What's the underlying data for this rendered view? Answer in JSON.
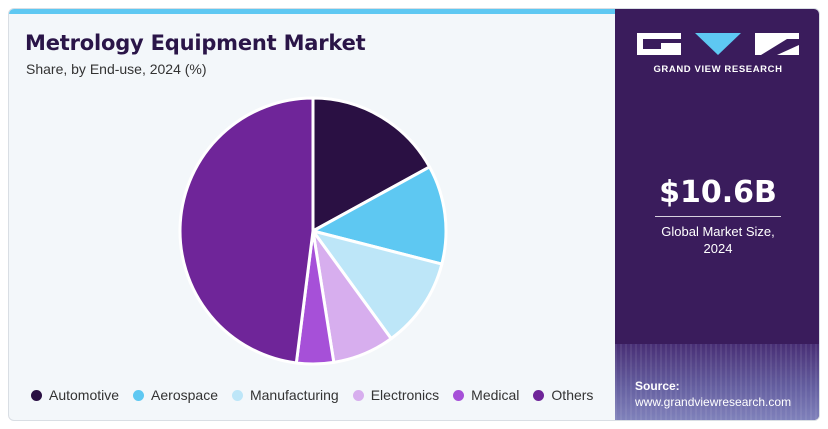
{
  "header": {
    "title": "Metrology Equipment Market",
    "subtitle": "Share, by End-use, 2024 (%)"
  },
  "sidebar": {
    "brand": "GRAND VIEW RESEARCH",
    "kpi_value": "$10.6B",
    "kpi_label_line1": "Global Market Size,",
    "kpi_label_line2": "2024",
    "source_title": "Source:",
    "source_url": "www.grandviewresearch.com",
    "background_color": "#3a1c5c"
  },
  "chart_data": {
    "type": "pie",
    "categories": [
      "Automotive",
      "Aerospace",
      "Manufacturing",
      "Electronics",
      "Medical",
      "Others"
    ],
    "values": [
      17,
      12,
      11,
      7.5,
      4.5,
      48
    ],
    "colors": [
      "#2a1043",
      "#5ec8f2",
      "#bde6f8",
      "#d7aeee",
      "#a650d8",
      "#6f2599"
    ],
    "start_angle_deg": 0,
    "direction": "clockwise",
    "legend_position": "bottom"
  }
}
